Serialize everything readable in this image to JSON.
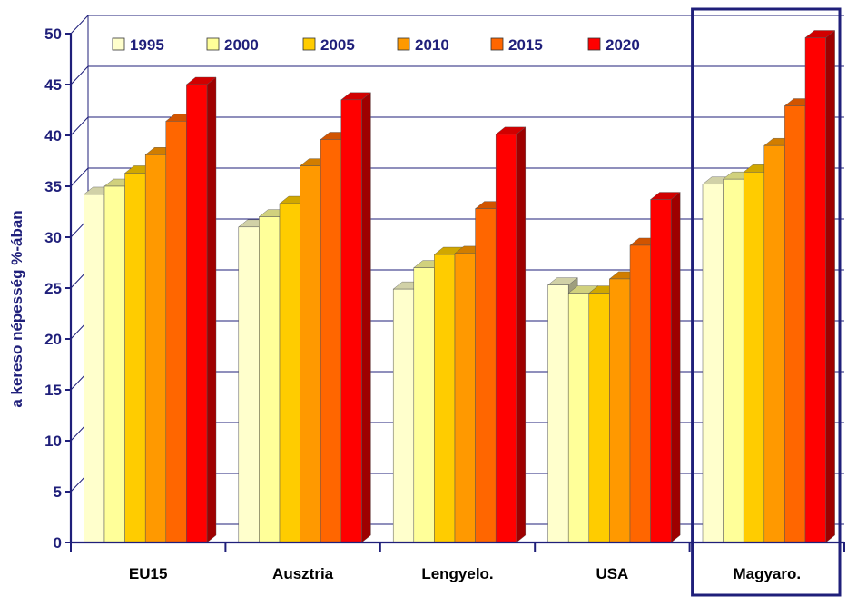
{
  "chart_data": {
    "type": "bar",
    "categories": [
      "EU15",
      "Ausztria",
      "Lengyelo.",
      "USA",
      "Magyaro."
    ],
    "series": [
      {
        "name": "1995",
        "values": [
          34.2,
          31.0,
          24.9,
          25.3,
          35.2
        ],
        "color": "#FFFFCC"
      },
      {
        "name": "2000",
        "values": [
          35.0,
          32.0,
          27.0,
          24.5,
          35.7
        ],
        "color": "#FFFF99"
      },
      {
        "name": "2005",
        "values": [
          36.3,
          33.3,
          28.3,
          24.5,
          36.4
        ],
        "color": "#FFCC00"
      },
      {
        "name": "2010",
        "values": [
          38.1,
          37.0,
          28.4,
          25.9,
          39.0
        ],
        "color": "#FF9900"
      },
      {
        "name": "2015",
        "values": [
          41.4,
          39.6,
          32.8,
          29.2,
          42.9
        ],
        "color": "#FF6600"
      },
      {
        "name": "2020",
        "values": [
          45.0,
          43.5,
          40.1,
          33.7,
          49.6
        ],
        "color": "#FF0000"
      }
    ],
    "title": "",
    "xlabel": "",
    "ylabel": "a kereso népesség %-ában",
    "ylim": [
      0,
      50
    ],
    "yticks": [
      "0",
      "5",
      "10",
      "15",
      "20",
      "25",
      "30",
      "35",
      "40",
      "45",
      "50"
    ],
    "grid": true,
    "legend_position": "top",
    "highlighted_category": "Magyaro.",
    "axis_color": "#1F1F7A"
  }
}
